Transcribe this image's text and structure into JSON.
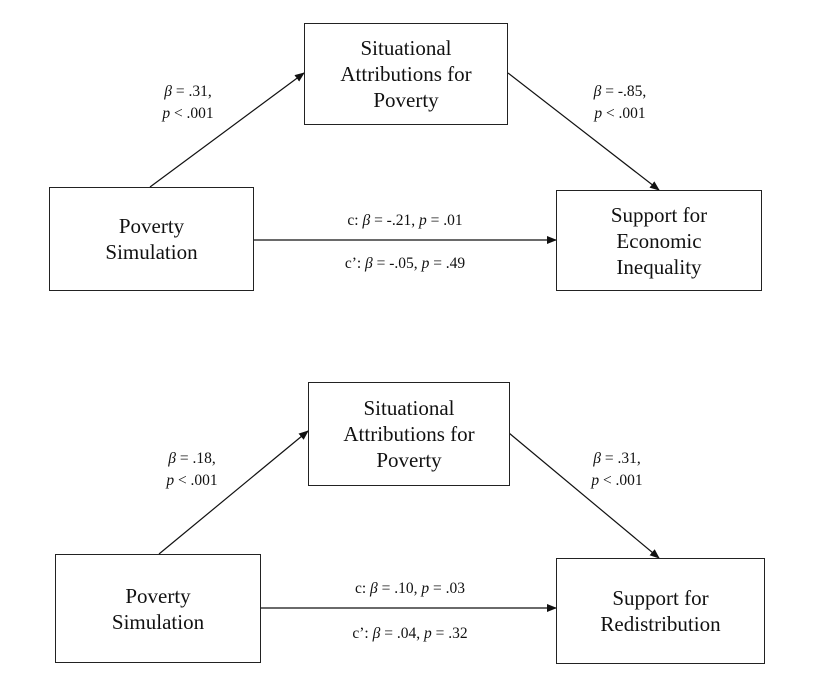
{
  "diagrams": [
    {
      "mediator": [
        "Situational",
        "Attributions for",
        "Poverty"
      ],
      "predictor": [
        "Poverty",
        "Simulation"
      ],
      "outcome": [
        "Support for",
        "Economic",
        "Inequality"
      ],
      "path_a": {
        "beta_sym": "β",
        "beta": " = .31,",
        "p_sym": "p",
        "p": " < .001"
      },
      "path_b": {
        "beta_sym": "β",
        "beta": " = -.85,",
        "p_sym": "p",
        "p": " < .001"
      },
      "path_c": {
        "prefix": "c: ",
        "beta_sym": "β",
        "beta": " = -.21,  ",
        "p_sym": "p",
        "p": " = .01"
      },
      "path_c_prime": {
        "prefix": "c’: ",
        "beta_sym": "β",
        "beta": " = -.05,  ",
        "p_sym": "p",
        "p": " = .49"
      }
    },
    {
      "mediator": [
        "Situational",
        "Attributions for",
        "Poverty"
      ],
      "predictor": [
        "Poverty",
        "Simulation"
      ],
      "outcome": [
        "Support for",
        "Redistribution"
      ],
      "path_a": {
        "beta_sym": "β",
        "beta": " = .18,",
        "p_sym": "p",
        "p": " < .001"
      },
      "path_b": {
        "beta_sym": "β",
        "beta": " = .31,",
        "p_sym": "p",
        "p": " < .001"
      },
      "path_c": {
        "prefix": "c: ",
        "beta_sym": "β",
        "beta": " = .10,  ",
        "p_sym": "p",
        "p": " = .03"
      },
      "path_c_prime": {
        "prefix": "c’: ",
        "beta_sym": "β",
        "beta": " = .04,  ",
        "p_sym": "p",
        "p": " = .32"
      }
    }
  ]
}
